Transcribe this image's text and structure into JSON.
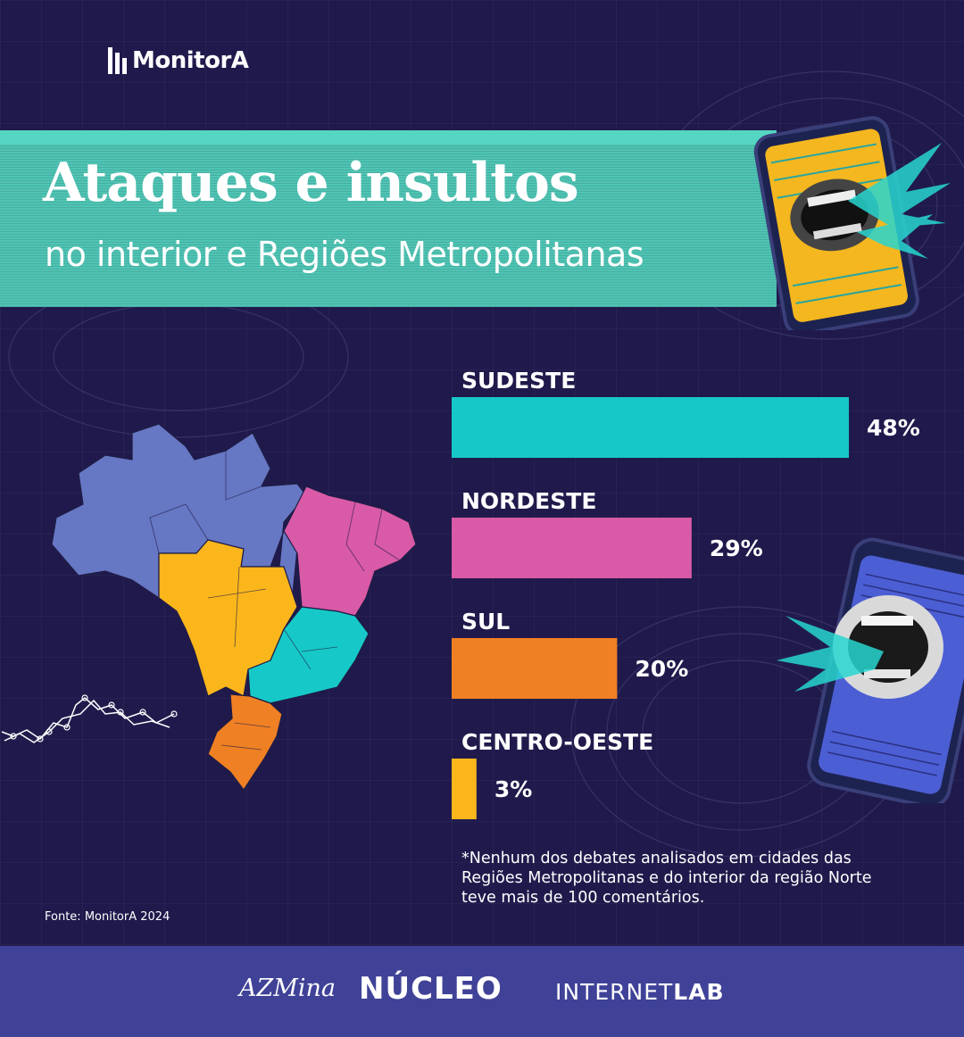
{
  "brand": {
    "logo_text": "MonitorA"
  },
  "header": {
    "title": "Ataques e insultos",
    "subtitle": "no interior e Regiões Metropolitanas"
  },
  "chart_data": {
    "type": "bar",
    "orientation": "horizontal",
    "categories": [
      "SUDESTE",
      "NORDESTE",
      "SUL",
      "CENTRO-OESTE"
    ],
    "values": [
      48,
      29,
      20,
      3
    ],
    "value_labels": [
      "48%",
      "29%",
      "20%",
      "3%"
    ],
    "colors": [
      "#16c9c8",
      "#d95aa6",
      "#f08024",
      "#fbb61c"
    ],
    "xlim": [
      0,
      48
    ],
    "grid": false
  },
  "map_region_colors": {
    "norte": "#6677c4",
    "nordeste": "#d95aa6",
    "centro_oeste": "#fbb61c",
    "sudeste": "#16c9c8",
    "sul": "#f08024"
  },
  "note": "*Nenhum dos debates analisados em cidades das Regiões Metropolitanas e do interior da região Norte teve mais de 100 comentários.",
  "source": "Fonte: MonitorA 2024",
  "footer": {
    "partners": [
      "AZMina",
      "NÚCLEO",
      "INTERNET",
      "LAB"
    ]
  }
}
